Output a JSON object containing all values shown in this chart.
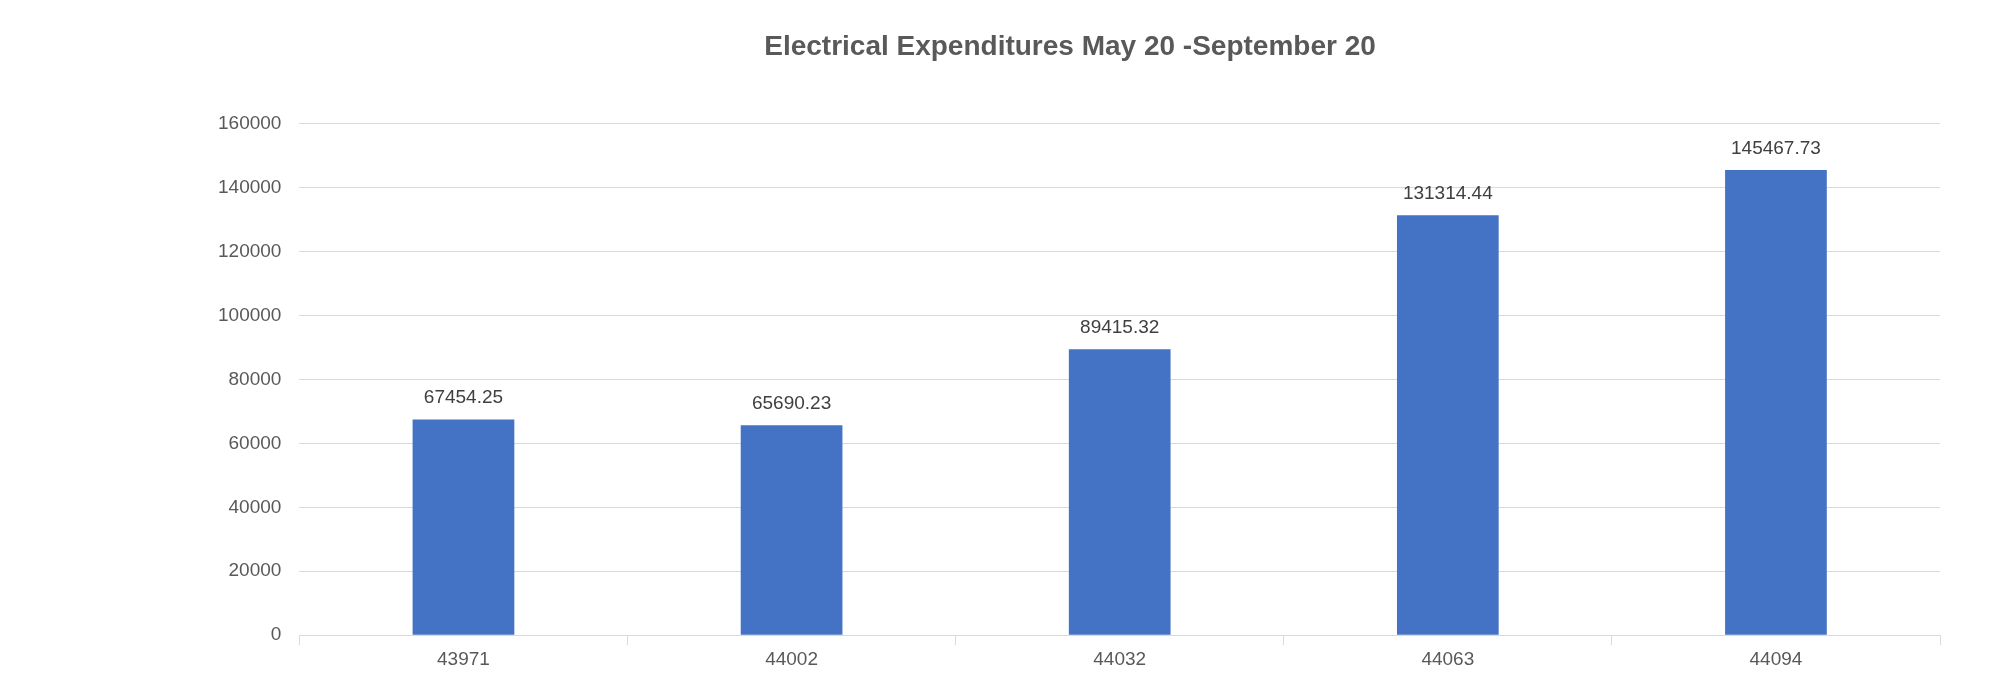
{
  "chart_data": {
    "type": "bar",
    "title": "Electrical Expenditures May 20 -September 20",
    "categories": [
      "43971",
      "44002",
      "44032",
      "44063",
      "44094"
    ],
    "values": [
      67454.25,
      65690.23,
      89415.32,
      131314.44,
      145467.73
    ],
    "color": "#4472c4",
    "ylim": [
      0,
      160000
    ],
    "yticks": [
      0,
      20000,
      40000,
      60000,
      80000,
      100000,
      120000,
      140000,
      160000
    ],
    "grid": "y",
    "data_labels": true,
    "legend": false
  }
}
